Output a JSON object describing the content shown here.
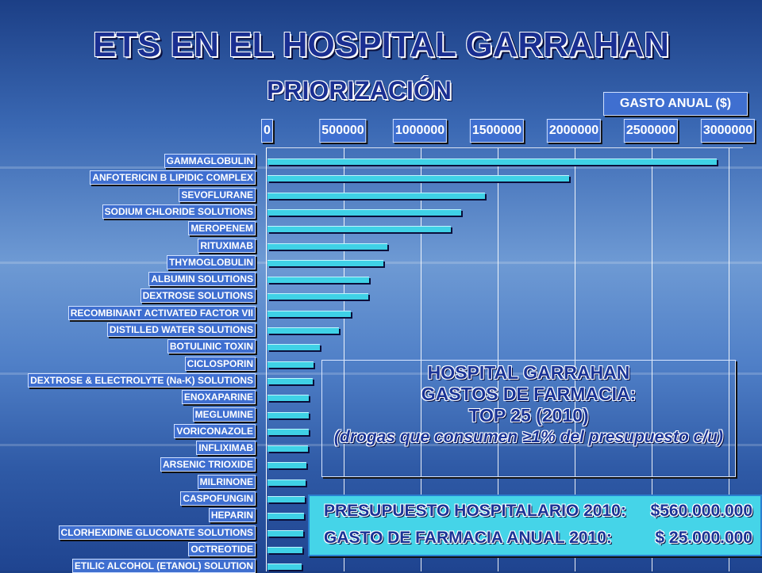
{
  "title": "ETS EN EL HOSPITAL GARRAHAN",
  "subtitle": "PRIORIZACIÓN",
  "info_box": {
    "line1": "HOSPITAL GARRAHAN",
    "line2": "GASTOS DE FARMACIA:",
    "line3": "TOP 25 (2010)",
    "line4": "(drogas que consumen ≥1% del presupuesto c/u)"
  },
  "budget_box": {
    "row1_label": "PRESUPUESTO HOSPITALARIO 2010:",
    "row1_value": "$560.000.000",
    "row2_label": "GASTO DE FARMACIA ANUAL 2010:",
    "row2_value": "$ 25.000.000"
  },
  "colors": {
    "bar": "#3fd1e6",
    "label_bg": "#3f6fd0",
    "title": "#1a2f92"
  },
  "chart_data": {
    "type": "bar",
    "orientation": "horizontal",
    "xlabel": "GASTO ANUAL ($)",
    "xlim": [
      0,
      3000000
    ],
    "xticks": [
      "0",
      "500000",
      "1000000",
      "1500000",
      "2000000",
      "2500000",
      "3000000"
    ],
    "grid": true,
    "categories": [
      "GAMMAGLOBULIN",
      "ANFOTERICIN B LIPIDIC COMPLEX",
      "SEVOFLURANE",
      "SODIUM CHLORIDE SOLUTIONS",
      "MEROPENEM",
      "RITUXIMAB",
      "THYMOGLOBULIN",
      "ALBUMIN SOLUTIONS",
      "DEXTROSE SOLUTIONS",
      "RECOMBINANT ACTIVATED FACTOR VII",
      "DISTILLED WATER SOLUTIONS",
      "BOTULINIC TOXIN",
      "CICLOSPORIN",
      "DEXTROSE & ELECTROLYTE (Na-K) SOLUTIONS",
      "ENOXAPARINE",
      "MEGLUMINE",
      "VORICONAZOLE",
      "INFLIXIMAB",
      "ARSENIC TRIOXIDE",
      "MILRINONE",
      "CASPOFUNGIN",
      "HEPARIN",
      "CLORHEXIDINE GLUCONATE SOLUTIONS",
      "OCTREOTIDE",
      "ETILIC ALCOHOL (ETANOL) SOLUTION"
    ],
    "values": [
      2920000,
      1960000,
      1410000,
      1260000,
      1190000,
      780000,
      750000,
      660000,
      655000,
      540000,
      465000,
      340000,
      300000,
      295000,
      270000,
      268000,
      266000,
      262000,
      250000,
      248000,
      240000,
      236000,
      234000,
      226000,
      220000
    ]
  }
}
